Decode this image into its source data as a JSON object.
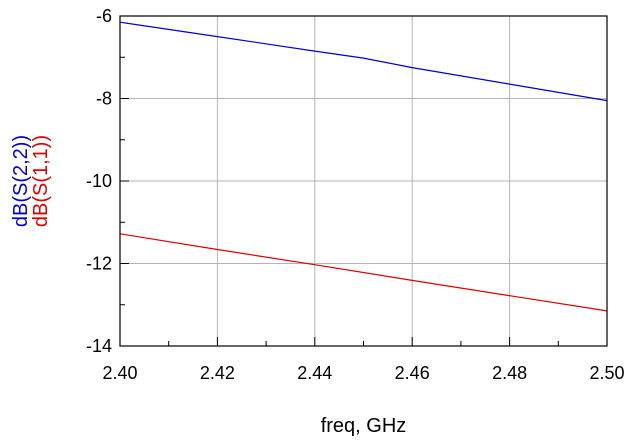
{
  "chart_data": {
    "type": "line",
    "xlabel": "freq, GHz",
    "xlim": [
      2.4,
      2.5
    ],
    "ylim": [
      -14,
      -6
    ],
    "x_ticks": [
      "2.40",
      "2.42",
      "2.44",
      "2.46",
      "2.48",
      "2.50"
    ],
    "y_ticks": [
      "-6",
      "-8",
      "-10",
      "-12",
      "-14"
    ],
    "grid": true,
    "series": [
      {
        "name": "dB(S(2,2))",
        "color": "#0000cc",
        "x": [
          2.4,
          2.42,
          2.44,
          2.45,
          2.46,
          2.48,
          2.5
        ],
        "y": [
          -6.15,
          -6.5,
          -6.85,
          -7.02,
          -7.25,
          -7.65,
          -8.05
        ]
      },
      {
        "name": "dB(S(1,1))",
        "color": "#dd0000",
        "x": [
          2.4,
          2.42,
          2.44,
          2.46,
          2.48,
          2.5
        ],
        "y": [
          -11.28,
          -11.66,
          -12.03,
          -12.41,
          -12.78,
          -13.15
        ]
      }
    ]
  }
}
